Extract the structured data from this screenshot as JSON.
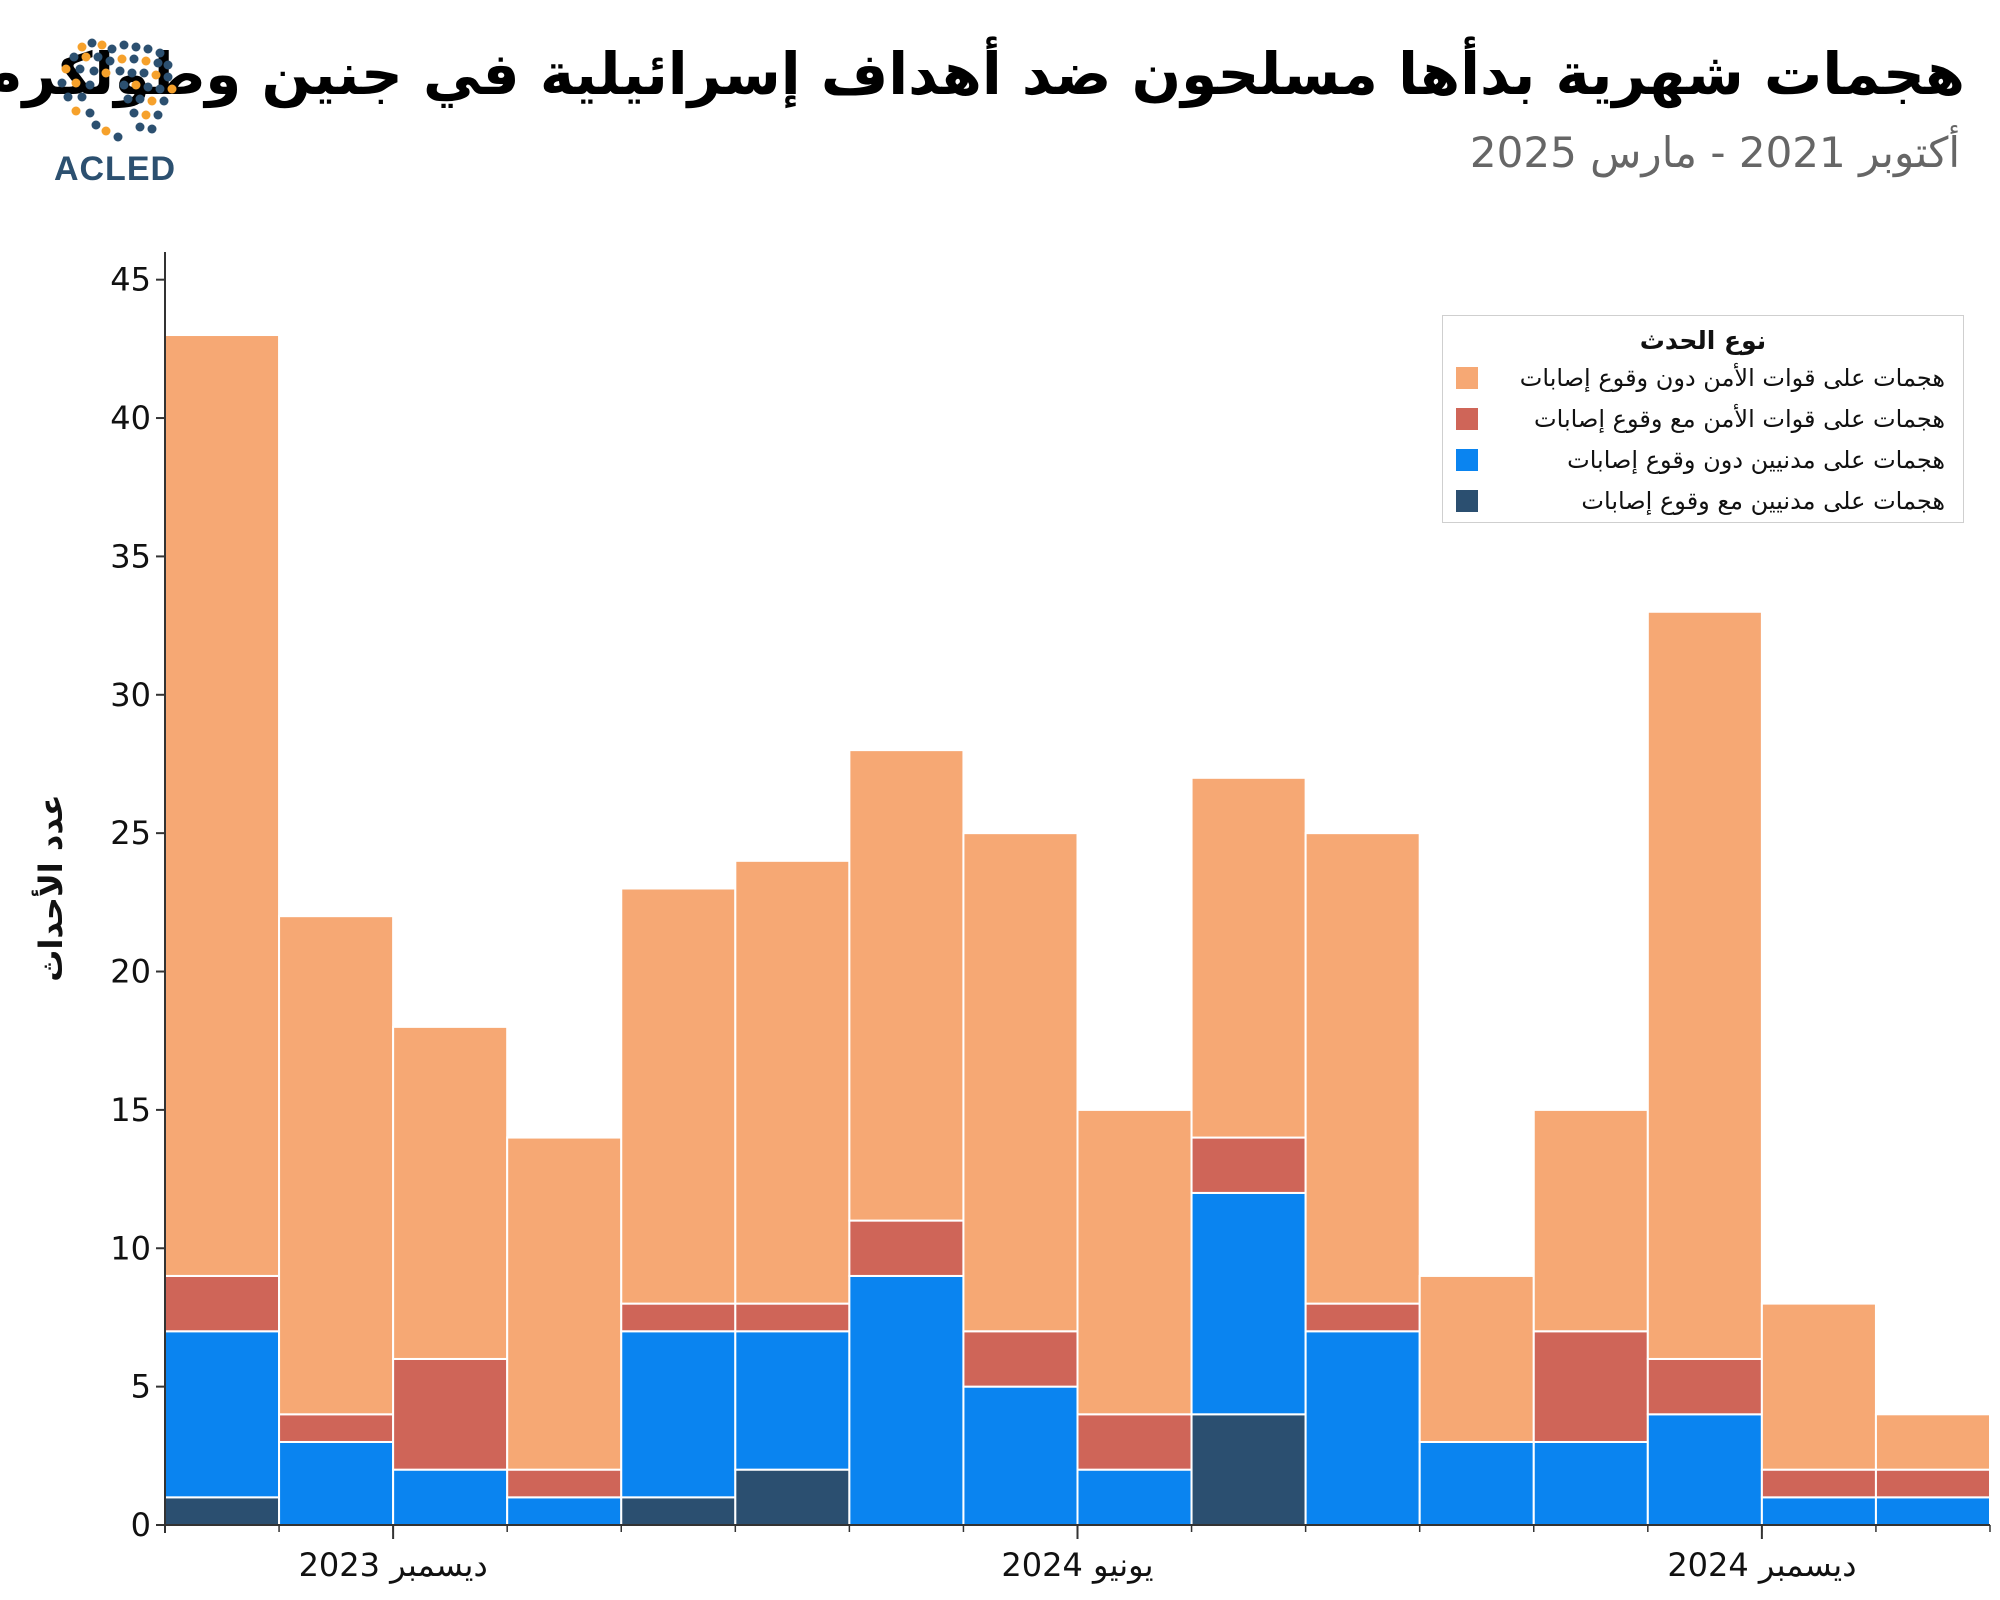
{
  "header": {
    "title": "هجمات شهرية بدأها مسلحون ضد أهداف إسرائيلية في جنين وطولكرم",
    "subtitle": "أكتوبر 2021 - مارس 2025",
    "logo_text": "ACLED"
  },
  "colors": {
    "sec_no_cas": "#f6a874",
    "sec_cas": "#cf6558",
    "civ_no_cas": "#0a84f0",
    "civ_cas": "#2b4f70",
    "axis": "#333333"
  },
  "chart_data": {
    "type": "bar",
    "stacked": true,
    "ylabel": "عدد الأحداث",
    "ylim": [
      0,
      46
    ],
    "yticks": [
      0,
      5,
      10,
      15,
      20,
      25,
      30,
      35,
      40,
      45
    ],
    "xtick_labels": [
      {
        "after_bar": 2,
        "label": "ديسمبر 2023"
      },
      {
        "after_bar": 8,
        "label": "يونيو 2024"
      },
      {
        "after_bar": 14,
        "label": "ديسمبر 2024"
      }
    ],
    "legend": {
      "title": "نوع الحدث",
      "position": "top-right"
    },
    "series": [
      {
        "name": "هجمات على مدنيين مع وقوع إصابات",
        "color_key": "civ_cas",
        "values": [
          1,
          0,
          0,
          0,
          1,
          2,
          0,
          0,
          0,
          4,
          0,
          0,
          0,
          0,
          0,
          0
        ]
      },
      {
        "name": "هجمات على مدنيين دون وقوع إصابات",
        "color_key": "civ_no_cas",
        "values": [
          6,
          3,
          2,
          1,
          6,
          5,
          9,
          5,
          2,
          8,
          7,
          3,
          3,
          4,
          1,
          1
        ]
      },
      {
        "name": "هجمات على قوات الأمن مع وقوع إصابات",
        "color_key": "sec_cas",
        "values": [
          2,
          1,
          4,
          1,
          1,
          1,
          2,
          2,
          2,
          2,
          1,
          0,
          4,
          2,
          1,
          1
        ]
      },
      {
        "name": "هجمات على قوات الأمن دون وقوع إصابات",
        "color_key": "sec_no_cas",
        "values": [
          34,
          18,
          12,
          12,
          15,
          16,
          17,
          18,
          11,
          13,
          17,
          6,
          8,
          27,
          6,
          2
        ]
      }
    ],
    "totals": [
      43,
      22,
      18,
      14,
      23,
      24,
      28,
      25,
      15,
      27,
      25,
      9,
      15,
      33,
      8,
      4
    ]
  }
}
